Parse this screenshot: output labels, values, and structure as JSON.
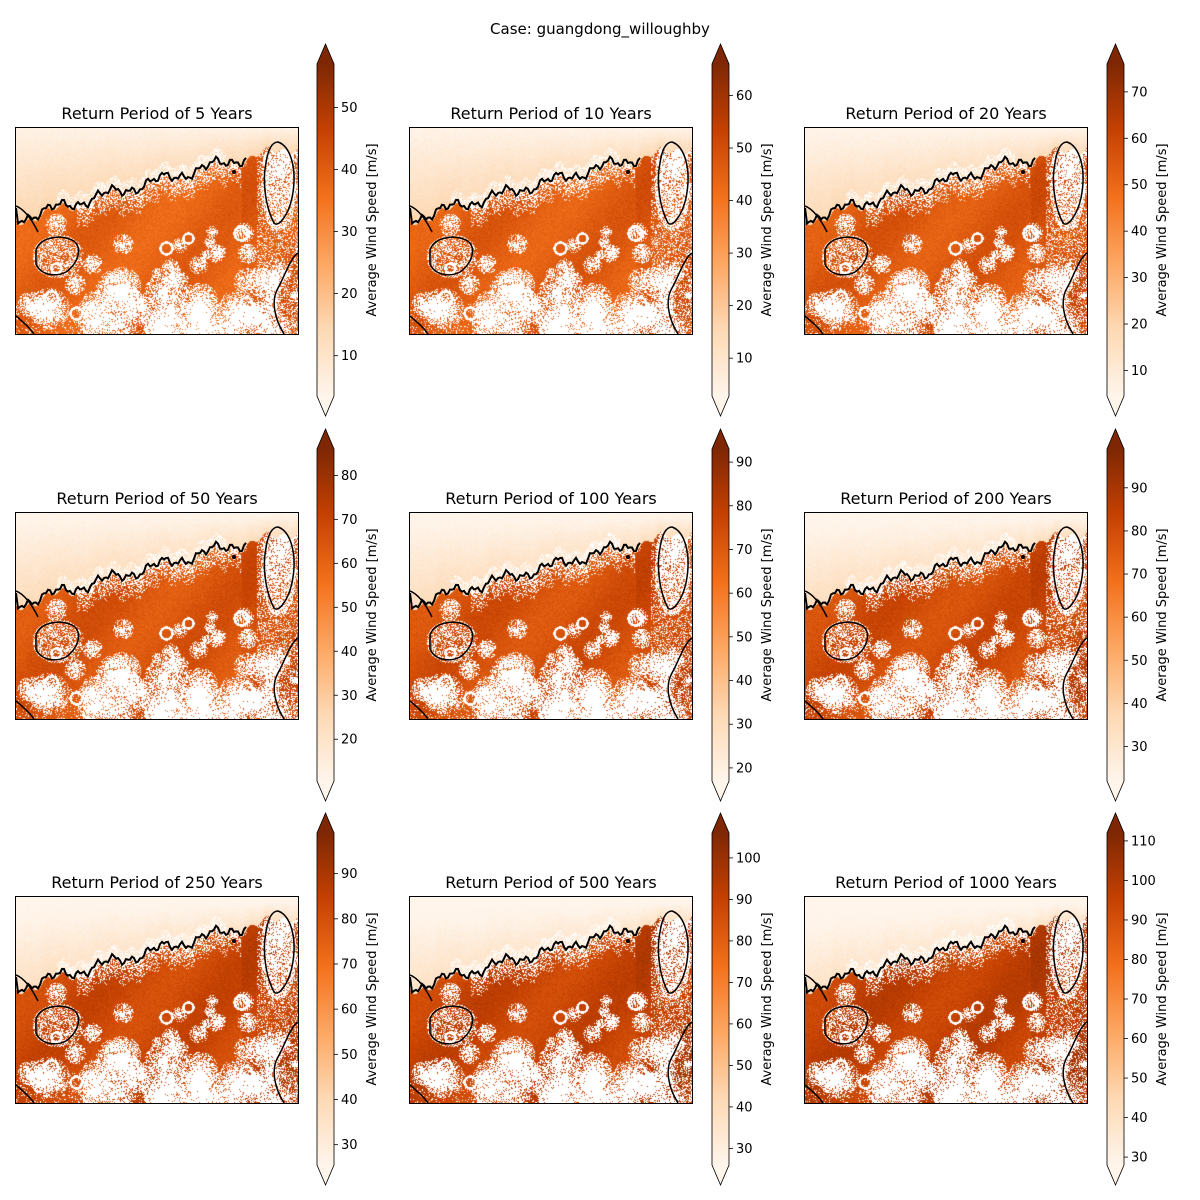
{
  "figure": {
    "suptitle": "Case: guangdong_willoughby"
  },
  "chart_data": [
    {
      "type": "heatmap",
      "title": "Return Period of 5 Years",
      "colormap": "Oranges",
      "colorbar_label": "Average Wind Speed [m/s]",
      "vmin": 3.5,
      "vmax": 57,
      "ticks": [
        10,
        20,
        30,
        40,
        50
      ],
      "extend": "both"
    },
    {
      "type": "heatmap",
      "title": "Return Period of 10 Years",
      "colormap": "Oranges",
      "colorbar_label": "Average Wind Speed [m/s]",
      "vmin": 2.8,
      "vmax": 66,
      "ticks": [
        10,
        20,
        30,
        40,
        50,
        60
      ],
      "extend": "both"
    },
    {
      "type": "heatmap",
      "title": "Return Period of 20 Years",
      "colormap": "Oranges",
      "colorbar_label": "Average Wind Speed [m/s]",
      "vmin": 4.5,
      "vmax": 76,
      "ticks": [
        10,
        20,
        30,
        40,
        50,
        60,
        70
      ],
      "extend": "both"
    },
    {
      "type": "heatmap",
      "title": "Return Period of 50 Years",
      "colormap": "Oranges",
      "colorbar_label": "Average Wind Speed [m/s]",
      "vmin": 10.5,
      "vmax": 86,
      "ticks": [
        20,
        30,
        40,
        50,
        60,
        70,
        80
      ],
      "extend": "both"
    },
    {
      "type": "heatmap",
      "title": "Return Period of 100 Years",
      "colormap": "Oranges",
      "colorbar_label": "Average Wind Speed [m/s]",
      "vmin": 17,
      "vmax": 93,
      "ticks": [
        20,
        30,
        40,
        50,
        60,
        70,
        80,
        90
      ],
      "extend": "both"
    },
    {
      "type": "heatmap",
      "title": "Return Period of 200 Years",
      "colormap": "Oranges",
      "colorbar_label": "Average Wind Speed [m/s]",
      "vmin": 22,
      "vmax": 99,
      "ticks": [
        30,
        40,
        50,
        60,
        70,
        80,
        90
      ],
      "extend": "both"
    },
    {
      "type": "heatmap",
      "title": "Return Period of 250 Years",
      "colormap": "Oranges",
      "colorbar_label": "Average Wind Speed [m/s]",
      "vmin": 25.5,
      "vmax": 99,
      "ticks": [
        30,
        40,
        50,
        60,
        70,
        80,
        90
      ],
      "extend": "both"
    },
    {
      "type": "heatmap",
      "title": "Return Period of 500 Years",
      "colormap": "Oranges",
      "colorbar_label": "Average Wind Speed [m/s]",
      "vmin": 26,
      "vmax": 106,
      "ticks": [
        30,
        40,
        50,
        60,
        70,
        80,
        90,
        100
      ],
      "extend": "both"
    },
    {
      "type": "heatmap",
      "title": "Return Period of 1000 Years",
      "colormap": "Oranges",
      "colorbar_label": "Average Wind Speed [m/s]",
      "vmin": 28,
      "vmax": 112,
      "ticks": [
        30,
        40,
        50,
        60,
        70,
        80,
        90,
        100,
        110
      ],
      "extend": "both"
    }
  ]
}
